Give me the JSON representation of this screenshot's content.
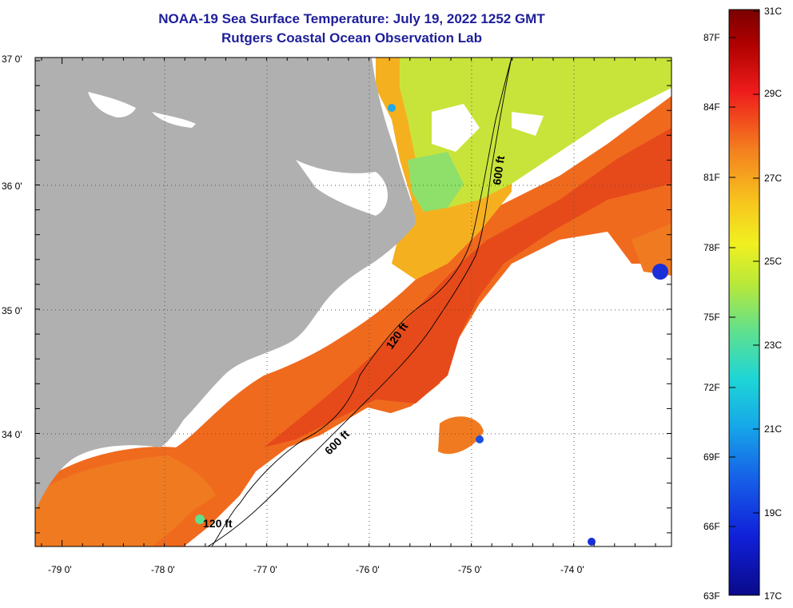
{
  "title": "NOAA-19 Sea Surface Temperature:  July 19, 2022 1252 GMT",
  "subtitle": "Rutgers Coastal Ocean Observation Lab",
  "lat_labels": [
    "37 0'",
    "36 0'",
    "35 0'",
    "34 0'"
  ],
  "lon_labels": [
    "-79 0'",
    "-78 0'",
    "-77 0'",
    "-76 0'",
    "-75 0'",
    "-74 0'"
  ],
  "contour_labels": {
    "c600_north": "600 ft",
    "c120_mid": "120 ft",
    "c600_south": "600 ft",
    "c120_south": "120 ft"
  },
  "colorbar": {
    "fahrenheit": [
      "87F",
      "84F",
      "81F",
      "78F",
      "75F",
      "72F",
      "69F",
      "66F",
      "63F"
    ],
    "celsius": [
      "31C",
      "29C",
      "27C",
      "25C",
      "23C",
      "21C",
      "19C",
      "17C"
    ]
  },
  "colors": {
    "land": "#b0b0b0",
    "no_data": "#ffffff",
    "warm": "#f06a1e",
    "hot": "#e8451a",
    "mid": "#f5b81f",
    "cool": "#c8e830"
  }
}
